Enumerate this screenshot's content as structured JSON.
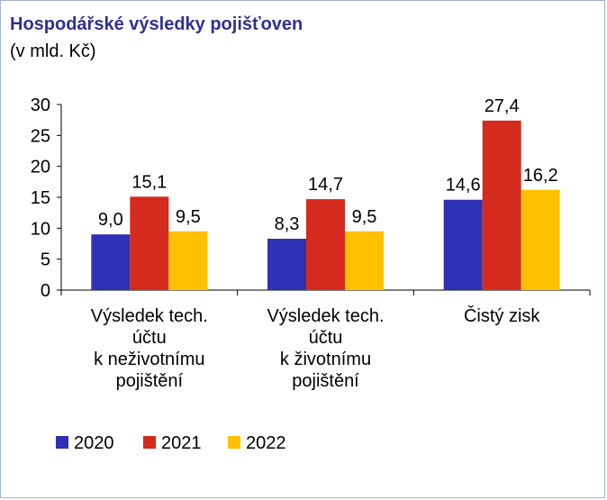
{
  "title": "Hospodářské výsledky pojišťoven",
  "subtitle": "(v mld. Kč)",
  "chart_data": {
    "type": "bar",
    "categories": [
      [
        "Výsledek tech.",
        "účtu",
        "k neživotnímu",
        "pojištění"
      ],
      [
        "Výsledek tech.",
        "účtu",
        "k životnímu",
        "pojištění"
      ],
      [
        "Čistý zisk"
      ]
    ],
    "series": [
      {
        "name": "2020",
        "color": "#2e31b4",
        "values": [
          9.0,
          8.3,
          14.6
        ],
        "labels": [
          "9,0",
          "8,3",
          "14,6"
        ]
      },
      {
        "name": "2021",
        "color": "#d52b1e",
        "values": [
          15.1,
          14.7,
          27.4
        ],
        "labels": [
          "15,1",
          "14,7",
          "27,4"
        ]
      },
      {
        "name": "2022",
        "color": "#ffc000",
        "values": [
          9.5,
          9.5,
          16.2
        ],
        "labels": [
          "9,5",
          "9,5",
          "16,2"
        ]
      }
    ],
    "ylim": [
      0,
      30
    ],
    "yticks": [
      "0",
      "5",
      "10",
      "15",
      "20",
      "25",
      "30"
    ],
    "grid": false,
    "legend": "bottom-left"
  }
}
